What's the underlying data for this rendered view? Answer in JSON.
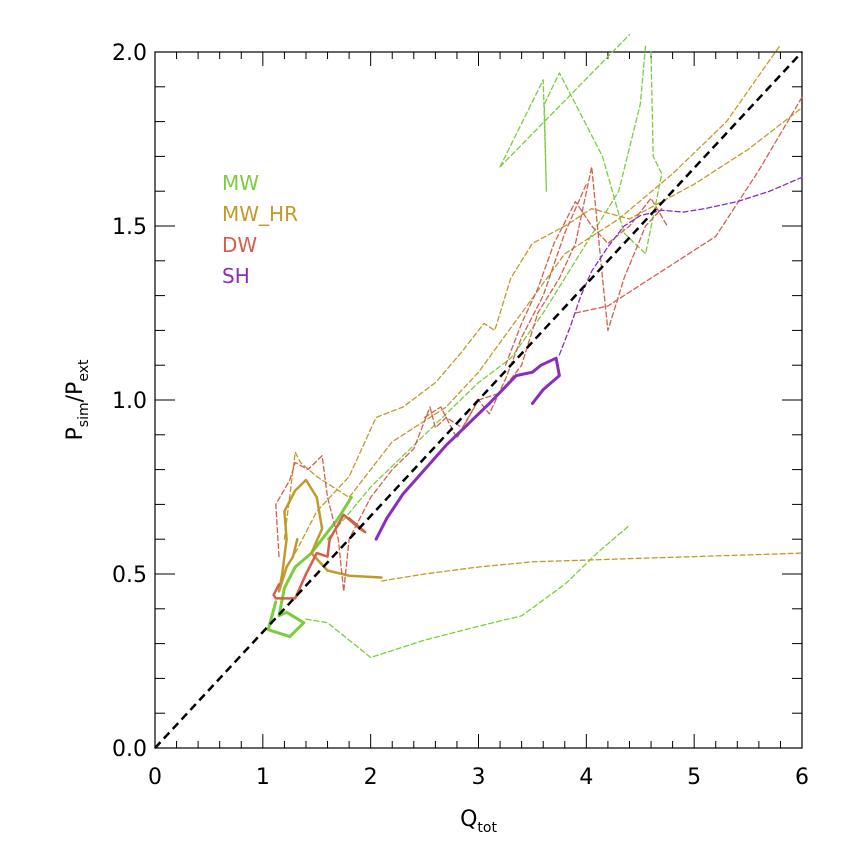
{
  "chart_data": {
    "type": "line",
    "title": "",
    "xlabel": {
      "main": "Q",
      "sub": "tot"
    },
    "ylabel": {
      "main1": "P",
      "sub1": "sim",
      "sep": "/",
      "main2": "P",
      "sub2": "ext"
    },
    "xlim": [
      0,
      6
    ],
    "ylim": [
      0,
      2
    ],
    "xticks": [
      0,
      1,
      2,
      3,
      4,
      5,
      6
    ],
    "xtick_labels": [
      "0",
      "1",
      "2",
      "3",
      "4",
      "5",
      "6"
    ],
    "yticks": [
      0,
      0.5,
      1,
      1.5,
      2
    ],
    "ytick_labels": [
      "0.0",
      "0.5",
      "1.0",
      "1.5",
      "2.0"
    ],
    "grid": false,
    "legend_position": "top-left",
    "colors": {
      "MW": "#7ccd3c",
      "MW_HR": "#c29a2a",
      "DW": "#d2604b",
      "SH": "#8a2dbf",
      "reference": "#000000"
    },
    "legend": [
      {
        "name": "MW",
        "label": "MW",
        "color": "#7ccd3c"
      },
      {
        "name": "MW_HR",
        "label": "MW_HR",
        "color": "#c29a2a"
      },
      {
        "name": "DW",
        "label": "DW",
        "color": "#d2604b"
      },
      {
        "name": "SH",
        "label": "SH",
        "color": "#8a2dbf"
      }
    ],
    "reference_line": {
      "name": "one-to-one",
      "style": "dashed",
      "color": "#000000",
      "points": [
        [
          0,
          0
        ],
        [
          6,
          2
        ]
      ]
    },
    "series": [
      {
        "name": "MW",
        "style": "dashed",
        "width": 1.3,
        "color": "#7ccd3c",
        "points": [
          [
            3.2,
            1.67
          ],
          [
            3.6,
            1.92
          ],
          [
            3.63,
            1.6
          ],
          [
            3.61,
            1.85
          ],
          [
            3.75,
            1.94
          ],
          [
            4.15,
            1.7
          ],
          [
            4.35,
            1.48
          ],
          [
            4.55,
            1.42
          ],
          [
            4.7,
            1.65
          ],
          [
            4.62,
            1.7
          ],
          [
            4.6,
            2.0
          ]
        ]
      },
      {
        "name": "MW",
        "style": "dashed",
        "width": 1.3,
        "color": "#7ccd3c",
        "points": [
          [
            3.2,
            1.67
          ],
          [
            4.4,
            2.05
          ]
        ]
      },
      {
        "name": "MW",
        "style": "dashed",
        "width": 1.3,
        "color": "#7ccd3c",
        "points": [
          [
            1.6,
            0.6
          ],
          [
            2.0,
            0.75
          ],
          [
            2.5,
            0.9
          ],
          [
            3.0,
            1.05
          ],
          [
            3.3,
            1.12
          ],
          [
            3.6,
            1.25
          ],
          [
            3.8,
            1.35
          ],
          [
            4.1,
            1.5
          ],
          [
            4.3,
            1.6
          ],
          [
            4.5,
            1.85
          ],
          [
            4.55,
            2.02
          ]
        ]
      },
      {
        "name": "MW",
        "style": "dashed",
        "width": 1.3,
        "color": "#7ccd3c",
        "points": [
          [
            1.4,
            0.37
          ],
          [
            1.6,
            0.36
          ],
          [
            1.8,
            0.31
          ],
          [
            2.0,
            0.26
          ],
          [
            2.5,
            0.31
          ],
          [
            3.0,
            0.35
          ],
          [
            3.4,
            0.38
          ],
          [
            3.8,
            0.47
          ],
          [
            4.1,
            0.56
          ],
          [
            4.4,
            0.64
          ]
        ]
      },
      {
        "name": "MW",
        "style": "solid",
        "width": 3.0,
        "color": "#7ccd3c",
        "points": [
          [
            1.12,
            0.42
          ],
          [
            1.05,
            0.34
          ],
          [
            1.25,
            0.32
          ],
          [
            1.38,
            0.36
          ],
          [
            1.22,
            0.39
          ],
          [
            1.15,
            0.38
          ],
          [
            1.2,
            0.46
          ],
          [
            1.3,
            0.52
          ],
          [
            1.45,
            0.56
          ],
          [
            1.55,
            0.6
          ],
          [
            1.7,
            0.66
          ],
          [
            1.82,
            0.72
          ]
        ]
      },
      {
        "name": "MW_HR",
        "style": "dashed",
        "width": 1.3,
        "color": "#c29a2a",
        "points": [
          [
            2.1,
            0.48
          ],
          [
            2.5,
            0.5
          ],
          [
            3.0,
            0.52
          ],
          [
            3.5,
            0.535
          ],
          [
            4.0,
            0.54
          ],
          [
            4.5,
            0.545
          ],
          [
            5.0,
            0.55
          ],
          [
            5.5,
            0.555
          ],
          [
            6.0,
            0.56
          ]
        ]
      },
      {
        "name": "MW_HR",
        "style": "dashed",
        "width": 1.3,
        "color": "#c29a2a",
        "points": [
          [
            1.3,
            0.56
          ],
          [
            1.5,
            0.68
          ],
          [
            1.8,
            0.78
          ],
          [
            2.05,
            0.95
          ],
          [
            2.3,
            0.98
          ],
          [
            2.6,
            1.05
          ],
          [
            2.85,
            1.14
          ],
          [
            3.05,
            1.22
          ],
          [
            3.15,
            1.2
          ],
          [
            3.3,
            1.35
          ],
          [
            3.5,
            1.45
          ],
          [
            3.8,
            1.5
          ],
          [
            4.05,
            1.55
          ],
          [
            4.4,
            1.52
          ],
          [
            4.7,
            1.57
          ],
          [
            5.0,
            1.62
          ],
          [
            5.5,
            1.72
          ],
          [
            6.0,
            1.84
          ]
        ]
      },
      {
        "name": "MW_HR",
        "style": "dashed",
        "width": 1.3,
        "color": "#c29a2a",
        "points": [
          [
            1.2,
            0.6
          ],
          [
            1.3,
            0.85
          ],
          [
            1.35,
            0.82
          ],
          [
            1.5,
            0.78
          ],
          [
            1.8,
            0.72
          ],
          [
            2.2,
            0.88
          ],
          [
            2.7,
            0.98
          ],
          [
            3.0,
            1.08
          ],
          [
            3.4,
            1.25
          ],
          [
            3.8,
            1.42
          ],
          [
            4.3,
            1.52
          ],
          [
            4.8,
            1.65
          ],
          [
            5.3,
            1.8
          ],
          [
            5.8,
            2.02
          ]
        ]
      },
      {
        "name": "MW_HR",
        "style": "solid",
        "width": 2.5,
        "color": "#c29a2a",
        "points": [
          [
            2.1,
            0.49
          ],
          [
            1.8,
            0.495
          ],
          [
            1.6,
            0.51
          ],
          [
            1.45,
            0.56
          ],
          [
            1.55,
            0.63
          ],
          [
            1.5,
            0.72
          ],
          [
            1.4,
            0.77
          ],
          [
            1.3,
            0.74
          ],
          [
            1.2,
            0.68
          ],
          [
            1.22,
            0.6
          ],
          [
            1.18,
            0.5
          ],
          [
            1.15,
            0.45
          ],
          [
            1.22,
            0.52
          ],
          [
            1.28,
            0.55
          ],
          [
            1.32,
            0.6
          ]
        ]
      },
      {
        "name": "DW",
        "style": "dashed",
        "width": 1.3,
        "color": "#d2604b",
        "points": [
          [
            1.15,
            0.55
          ],
          [
            1.12,
            0.7
          ],
          [
            1.25,
            0.77
          ],
          [
            1.3,
            0.82
          ],
          [
            1.42,
            0.8
          ],
          [
            1.55,
            0.84
          ],
          [
            1.6,
            0.72
          ],
          [
            1.7,
            0.6
          ],
          [
            1.75,
            0.45
          ],
          [
            1.8,
            0.6
          ],
          [
            2.0,
            0.72
          ],
          [
            2.2,
            0.8
          ],
          [
            2.4,
            0.86
          ],
          [
            2.55,
            0.98
          ],
          [
            2.6,
            0.92
          ],
          [
            2.7,
            0.95
          ],
          [
            2.85,
            0.92
          ],
          [
            3.0,
            1.0
          ],
          [
            3.2,
            1.02
          ],
          [
            3.4,
            1.1
          ],
          [
            3.55,
            1.25
          ],
          [
            3.75,
            1.35
          ],
          [
            3.9,
            1.45
          ],
          [
            4.05,
            1.67
          ],
          [
            4.15,
            1.35
          ],
          [
            4.2,
            1.2
          ],
          [
            4.35,
            1.35
          ],
          [
            4.55,
            1.5
          ],
          [
            4.7,
            1.55
          ]
        ]
      },
      {
        "name": "DW",
        "style": "dashed",
        "width": 1.3,
        "color": "#d2604b",
        "points": [
          [
            3.25,
            1.1
          ],
          [
            3.4,
            1.22
          ],
          [
            3.55,
            1.32
          ],
          [
            3.7,
            1.45
          ],
          [
            3.9,
            1.57
          ],
          [
            4.05,
            1.5
          ],
          [
            4.2,
            1.45
          ],
          [
            4.4,
            1.5
          ],
          [
            4.6,
            1.58
          ],
          [
            4.75,
            1.5
          ]
        ]
      },
      {
        "name": "DW",
        "style": "dashed",
        "width": 1.3,
        "color": "#d2604b",
        "points": [
          [
            3.9,
            1.25
          ],
          [
            4.2,
            1.27
          ],
          [
            4.6,
            1.35
          ],
          [
            5.2,
            1.47
          ],
          [
            5.6,
            1.66
          ],
          [
            6.0,
            1.87
          ]
        ]
      },
      {
        "name": "DW",
        "style": "dashed",
        "width": 1.3,
        "color": "#d2604b",
        "points": [
          [
            2.5,
            0.95
          ],
          [
            2.65,
            0.98
          ],
          [
            2.8,
            0.89
          ],
          [
            3.0,
            1.0
          ],
          [
            3.1,
            0.96
          ],
          [
            3.25,
            1.06
          ],
          [
            3.4,
            1.18
          ],
          [
            3.6,
            1.3
          ],
          [
            3.8,
            1.48
          ],
          [
            4.0,
            1.62
          ]
        ]
      },
      {
        "name": "DW",
        "style": "solid",
        "width": 2.5,
        "color": "#d2604b",
        "points": [
          [
            1.15,
            0.47
          ],
          [
            1.1,
            0.44
          ],
          [
            1.12,
            0.43
          ],
          [
            1.3,
            0.43
          ],
          [
            1.4,
            0.5
          ],
          [
            1.5,
            0.56
          ],
          [
            1.6,
            0.55
          ],
          [
            1.62,
            0.6
          ],
          [
            1.75,
            0.67
          ],
          [
            1.9,
            0.63
          ],
          [
            1.95,
            0.62
          ],
          [
            1.8,
            0.66
          ]
        ]
      },
      {
        "name": "SH",
        "style": "dashed",
        "width": 1.3,
        "color": "#8a2dbf",
        "points": [
          [
            3.75,
            1.13
          ],
          [
            3.85,
            1.21
          ],
          [
            3.95,
            1.3
          ],
          [
            4.05,
            1.37
          ],
          [
            4.2,
            1.44
          ],
          [
            4.35,
            1.5
          ],
          [
            4.5,
            1.53
          ],
          [
            4.7,
            1.545
          ],
          [
            4.9,
            1.54
          ],
          [
            5.1,
            1.55
          ],
          [
            5.4,
            1.57
          ],
          [
            5.7,
            1.6
          ],
          [
            6.0,
            1.64
          ]
        ]
      },
      {
        "name": "SH",
        "style": "solid",
        "width": 3.0,
        "color": "#8a2dbf",
        "points": [
          [
            2.05,
            0.6
          ],
          [
            2.15,
            0.66
          ],
          [
            2.3,
            0.73
          ],
          [
            2.5,
            0.8
          ],
          [
            2.7,
            0.87
          ],
          [
            2.9,
            0.93
          ],
          [
            3.1,
            0.99
          ],
          [
            3.35,
            1.07
          ],
          [
            3.5,
            1.08
          ],
          [
            3.58,
            1.1
          ],
          [
            3.72,
            1.12
          ],
          [
            3.75,
            1.07
          ],
          [
            3.6,
            1.03
          ],
          [
            3.5,
            0.99
          ]
        ]
      }
    ]
  }
}
